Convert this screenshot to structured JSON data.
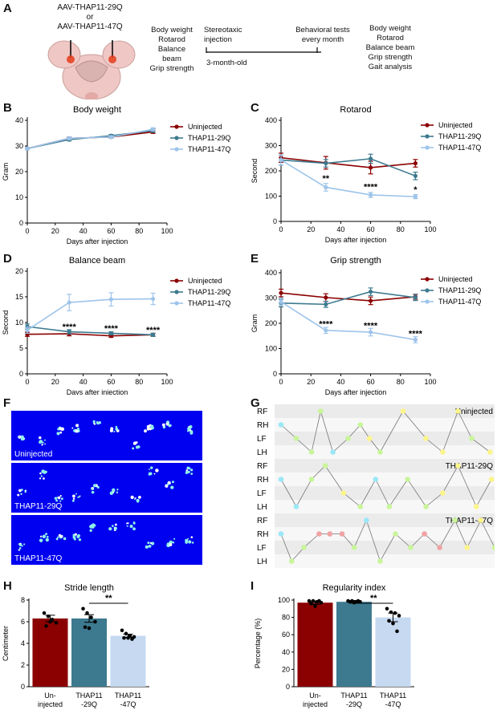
{
  "panel_letters": [
    "A",
    "B",
    "C",
    "D",
    "E",
    "F",
    "G",
    "H",
    "I"
  ],
  "panelA": {
    "aav_line1": "AAV-THAP11-29Q",
    "aav_or": "or",
    "aav_line2": "AAV-THAP11-47Q",
    "pre_tests": [
      "Body weight",
      "Rotarod",
      "Balance",
      "beam",
      "Grip strength"
    ],
    "timeline_start": "Stereotaxic",
    "timeline_start2": "injection",
    "timeline_age": "3-month-old",
    "timeline_tests": "Behavioral tests",
    "timeline_tests2": "every month",
    "post_tests": [
      "Body weight",
      "Rotarod",
      "Balance beam",
      "Grip strength",
      "Gait analysis"
    ]
  },
  "colors": {
    "uninjected": "#8b0000",
    "thap29": "#3d7a8f",
    "thap47": "#9ec4ea",
    "bar_un": "#8b0000",
    "bar_29": "#3d7a8f",
    "bar_47": "#c6d9f1",
    "gait_bg": "#0000f0",
    "green_dot": "#c9f59a",
    "yellow_dot": "#fbf58a",
    "cyan_dot": "#9be7f7",
    "pink_dot": "#f0a3a3"
  },
  "gait_labels": [
    "Uninjected",
    "THAP11-29Q",
    "THAP11-47Q"
  ],
  "paw_labels": [
    "RF",
    "RH",
    "LF",
    "LH"
  ],
  "chart_data": [
    {
      "id": "B",
      "type": "line",
      "title": "Body weight",
      "xlabel": "Days after injection",
      "ylabel": "Gram",
      "xlim": [
        0,
        100
      ],
      "ylim": [
        0,
        40
      ],
      "xticks": [
        0,
        20,
        40,
        60,
        80,
        100
      ],
      "yticks": [
        0,
        10,
        20,
        30,
        40
      ],
      "x": [
        0,
        30,
        60,
        90
      ],
      "series": [
        {
          "name": "Uninjected",
          "values": [
            29,
            33,
            33.5,
            35.5
          ],
          "err": [
            0.4,
            0.5,
            0.5,
            0.6
          ]
        },
        {
          "name": "THAP11-29Q",
          "values": [
            29,
            32.5,
            34,
            36
          ],
          "err": [
            0.4,
            0.5,
            0.5,
            0.7
          ]
        },
        {
          "name": "THAP11-47Q",
          "values": [
            29,
            33,
            33.5,
            36.5
          ],
          "err": [
            0.4,
            0.5,
            0.5,
            0.6
          ]
        }
      ],
      "annotations": []
    },
    {
      "id": "C",
      "type": "line",
      "title": "Rotarod",
      "xlabel": "Days after injection",
      "ylabel": "Second",
      "xlim": [
        0,
        100
      ],
      "ylim": [
        0,
        400
      ],
      "xticks": [
        0,
        20,
        40,
        60,
        80,
        100
      ],
      "yticks": [
        0,
        100,
        200,
        300,
        400
      ],
      "x": [
        0,
        30,
        60,
        90
      ],
      "series": [
        {
          "name": "Uninjected",
          "values": [
            252,
            232,
            213,
            230
          ],
          "err": [
            18,
            25,
            25,
            15
          ]
        },
        {
          "name": "THAP11-29Q",
          "values": [
            243,
            230,
            248,
            180
          ],
          "err": [
            20,
            15,
            18,
            15
          ]
        },
        {
          "name": "THAP11-47Q",
          "values": [
            243,
            135,
            105,
            98
          ],
          "err": [
            20,
            15,
            10,
            8
          ]
        }
      ],
      "annotations": [
        {
          "x": 30,
          "y": 158,
          "text": "**"
        },
        {
          "x": 60,
          "y": 125,
          "text": "****"
        },
        {
          "x": 90,
          "y": 115,
          "text": "*"
        }
      ]
    },
    {
      "id": "D",
      "type": "line",
      "title": "Balance beam",
      "xlabel": "Days after injection",
      "ylabel": "Second",
      "xlim": [
        0,
        100
      ],
      "ylim": [
        0,
        20
      ],
      "xticks": [
        0,
        20,
        40,
        60,
        80,
        100
      ],
      "yticks": [
        0,
        5,
        10,
        15,
        20
      ],
      "x": [
        0,
        30,
        60,
        90
      ],
      "series": [
        {
          "name": "Uninjected",
          "values": [
            7.7,
            7.8,
            7.4,
            7.6
          ],
          "err": [
            0.4,
            0.4,
            0.3,
            0.3
          ]
        },
        {
          "name": "THAP11-29Q",
          "values": [
            9.2,
            8.2,
            7.9,
            7.6
          ],
          "err": [
            0.5,
            0.4,
            0.3,
            0.3
          ]
        },
        {
          "name": "THAP11-47Q",
          "values": [
            8.5,
            13.9,
            14.5,
            14.6
          ],
          "err": [
            0.6,
            1.6,
            1.3,
            1.1
          ]
        }
      ],
      "annotations": [
        {
          "x": 30,
          "y": 8.6,
          "text": "****"
        },
        {
          "x": 60,
          "y": 8.3,
          "text": "****"
        },
        {
          "x": 90,
          "y": 8.0,
          "text": "****"
        }
      ]
    },
    {
      "id": "E",
      "type": "line",
      "title": "Grip strength",
      "xlabel": "Days after injection",
      "ylabel": "Gram",
      "xlim": [
        0,
        100
      ],
      "ylim": [
        0,
        400
      ],
      "xticks": [
        0,
        20,
        40,
        60,
        80,
        100
      ],
      "yticks": [
        0,
        100,
        200,
        300,
        400
      ],
      "x": [
        0,
        30,
        60,
        90
      ],
      "series": [
        {
          "name": "Uninjected",
          "values": [
            320,
            302,
            289,
            305
          ],
          "err": [
            15,
            15,
            15,
            10
          ]
        },
        {
          "name": "THAP11-29Q",
          "values": [
            280,
            275,
            325,
            302
          ],
          "err": [
            15,
            12,
            15,
            12
          ]
        },
        {
          "name": "THAP11-47Q",
          "values": [
            285,
            172,
            165,
            135
          ],
          "err": [
            15,
            12,
            15,
            12
          ]
        }
      ],
      "annotations": [
        {
          "x": 30,
          "y": 185,
          "text": "****"
        },
        {
          "x": 60,
          "y": 180,
          "text": "****"
        },
        {
          "x": 90,
          "y": 148,
          "text": "****"
        }
      ]
    },
    {
      "id": "H",
      "type": "bar",
      "title": "Stride length",
      "ylabel": "Centimeter",
      "ylim": [
        0,
        8
      ],
      "yticks": [
        0,
        2,
        4,
        6,
        8
      ],
      "categories": [
        "Un-\ninjected",
        "THAP11\n-29Q",
        "THAP11\n-47Q"
      ],
      "values": [
        6.3,
        6.3,
        4.7
      ],
      "err": [
        0.3,
        0.35,
        0.15
      ],
      "points": [
        [
          6.8,
          6.5,
          6.2,
          5.9,
          5.6,
          6.0
        ],
        [
          7.2,
          6.8,
          6.4,
          6.0,
          5.5,
          5.4
        ],
        [
          5.2,
          4.9,
          4.7,
          4.6,
          4.5,
          4.5,
          4.4
        ]
      ],
      "significance": {
        "from": 1,
        "to": 2,
        "text": "**"
      }
    },
    {
      "id": "I",
      "type": "bar",
      "title": "Regularity index",
      "ylabel": "Percentage (%)",
      "ylim": [
        0,
        100
      ],
      "yticks": [
        0,
        20,
        40,
        60,
        80,
        100
      ],
      "categories": [
        "Un-\ninjected",
        "THAP11\n-29Q",
        "THAP11\n-47Q"
      ],
      "values": [
        97,
        98,
        80
      ],
      "err": [
        2,
        1.5,
        5
      ],
      "points": [
        [
          99,
          99,
          98,
          97,
          96,
          93,
          99
        ],
        [
          99,
          99,
          98,
          98,
          98,
          97,
          99
        ],
        [
          90,
          86,
          85,
          82,
          76,
          73,
          64
        ]
      ],
      "significance": {
        "from": 1,
        "to": 2,
        "text": "**"
      }
    }
  ]
}
